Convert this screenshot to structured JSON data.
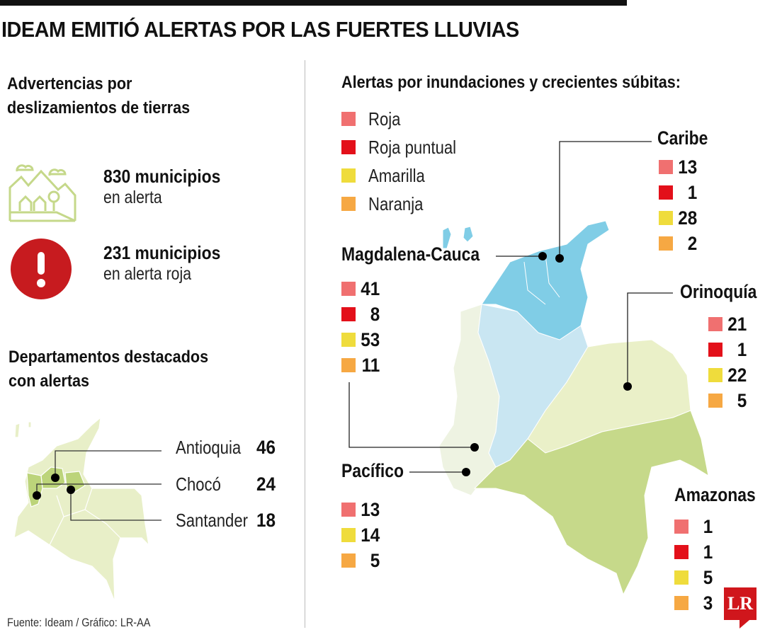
{
  "title": "IDEAM EMITIÓ ALERTAS POR LAS FUERTES LLUVIAS",
  "landslides": {
    "heading_line1": "Advertencias por",
    "heading_line2": "deslizamientos de tierras",
    "stats": [
      {
        "icon": "landscape-icon",
        "value": "830 municipios",
        "label": "en alerta"
      },
      {
        "icon": "alert-exclamation-icon",
        "value": "231 municipios",
        "label": "en alerta roja"
      }
    ]
  },
  "departments": {
    "heading_line1": "Departamentos destacados",
    "heading_line2": "con alertas",
    "items": [
      {
        "name": "Antioquia",
        "value": "46"
      },
      {
        "name": "Chocó",
        "value": "24"
      },
      {
        "name": "Santander",
        "value": "18"
      }
    ]
  },
  "floods": {
    "heading": "Alertas por inundaciones y crecientes súbitas:",
    "legend": [
      {
        "label": "Roja",
        "color": "#f07070"
      },
      {
        "label": "Roja puntual",
        "color": "#e3101a"
      },
      {
        "label": "Amarilla",
        "color": "#efdc3c"
      },
      {
        "label": "Naranja",
        "color": "#f6a843"
      }
    ],
    "regions": {
      "caribe": {
        "name": "Caribe",
        "values": [
          {
            "level": "Roja",
            "value": "13"
          },
          {
            "level": "Roja puntual",
            "value": "1"
          },
          {
            "level": "Amarilla",
            "value": "28"
          },
          {
            "level": "Naranja",
            "value": "2"
          }
        ]
      },
      "magdalena": {
        "name": "Magdalena-Cauca",
        "values": [
          {
            "level": "Roja",
            "value": "41"
          },
          {
            "level": "Roja puntual",
            "value": "8"
          },
          {
            "level": "Amarilla",
            "value": "53"
          },
          {
            "level": "Naranja",
            "value": "11"
          }
        ]
      },
      "orinoquia": {
        "name": "Orinoquía",
        "values": [
          {
            "level": "Roja",
            "value": "21"
          },
          {
            "level": "Roja puntual",
            "value": "1"
          },
          {
            "level": "Amarilla",
            "value": "22"
          },
          {
            "level": "Naranja",
            "value": "5"
          }
        ]
      },
      "pacifico": {
        "name": "Pacífico",
        "values": [
          {
            "level": "Roja",
            "value": "13"
          },
          {
            "level": "Amarilla",
            "value": "14"
          },
          {
            "level": "Naranja",
            "value": "5"
          }
        ]
      },
      "amazonas": {
        "name": "Amazonas",
        "values": [
          {
            "level": "Roja",
            "value": "1"
          },
          {
            "level": "Roja puntual",
            "value": "1"
          },
          {
            "level": "Amarilla",
            "value": "5"
          },
          {
            "level": "Naranja",
            "value": "3"
          }
        ]
      }
    },
    "region_colors": {
      "caribe": "#80cde6",
      "magdalena": "#c9e6f2",
      "pacifico": "#eef3e2",
      "orinoquia": "#eaf0c8",
      "amazonas": "#c6d98a"
    }
  },
  "source": "Fuente:  Ideam / Gráfico: LR-AA",
  "logo": "LR"
}
